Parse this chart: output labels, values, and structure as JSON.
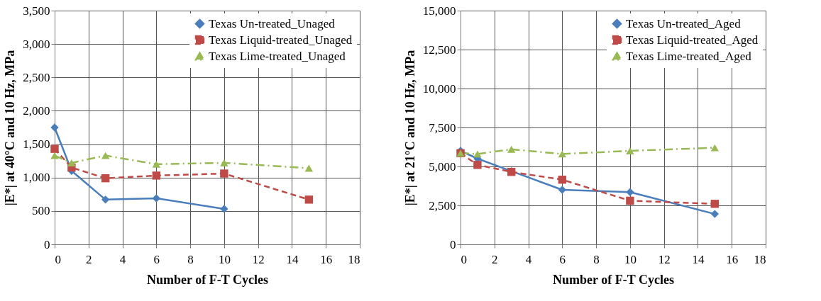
{
  "chart_data": [
    {
      "type": "line",
      "xlabel": "Number of F-T Cycles",
      "ylabel": "|E*| at 40°C and 10 Hz, MPa",
      "x": [
        0,
        1,
        3,
        6,
        10,
        15
      ],
      "xlim": [
        0,
        18
      ],
      "xticks": [
        0,
        2,
        4,
        6,
        8,
        10,
        12,
        14,
        16,
        18
      ],
      "ylim": [
        0,
        3500
      ],
      "yticks": [
        0,
        500,
        {
          "value": 1000,
          "label": "1,000"
        },
        {
          "value": 1500,
          "label": "1,500"
        },
        {
          "value": 2000,
          "label": "2,000"
        },
        {
          "value": 2500,
          "label": "2,500"
        },
        {
          "value": 3000,
          "label": "3,000"
        },
        {
          "value": 3500,
          "label": "3,500"
        }
      ],
      "grid": true,
      "legend": "top right",
      "series": [
        {
          "name": "Texas Un-treated_Unaged",
          "color": "#4a7ebb",
          "marker": "diamond",
          "line_style": "solid",
          "values": [
            1750,
            1100,
            670,
            690,
            530,
            null
          ]
        },
        {
          "name": "Texas Liquid-treated_Unaged",
          "color": "#be4b48",
          "marker": "square",
          "line_style": "dashed",
          "values": [
            1430,
            1150,
            990,
            1030,
            1060,
            670
          ]
        },
        {
          "name": "Texas Lime-treated_Unaged",
          "color": "#98b954",
          "marker": "triangle",
          "line_style": "dashdot",
          "values": [
            1330,
            1220,
            1330,
            1200,
            1220,
            1140
          ]
        }
      ]
    },
    {
      "type": "line",
      "xlabel": "Number of F-T Cycles",
      "ylabel": "|E*| at 21°C and 10 Hz, MPa",
      "x": [
        0,
        1,
        3,
        6,
        10,
        15
      ],
      "xlim": [
        0,
        18
      ],
      "xticks": [
        0,
        2,
        4,
        6,
        8,
        10,
        12,
        14,
        16,
        18
      ],
      "ylim": [
        0,
        15000
      ],
      "yticks": [
        0,
        {
          "value": 2500,
          "label": "2,500"
        },
        {
          "value": 5000,
          "label": "5,000"
        },
        {
          "value": 7500,
          "label": "7,500"
        },
        {
          "value": 10000,
          "label": "10,000"
        },
        {
          "value": 12500,
          "label": "12,500"
        },
        {
          "value": 15000,
          "label": "15,000"
        }
      ],
      "grid": true,
      "legend": "top right",
      "series": [
        {
          "name": "Texas Un-treated_Aged",
          "color": "#4a7ebb",
          "marker": "diamond",
          "line_style": "solid",
          "values": [
            6000,
            5500,
            4700,
            3500,
            3350,
            1950
          ]
        },
        {
          "name": "Texas Liquid-treated_Aged",
          "color": "#be4b48",
          "marker": "square",
          "line_style": "dashed",
          "values": [
            5850,
            5100,
            4650,
            4150,
            2800,
            2600
          ]
        },
        {
          "name": "Texas Lime-treated_Aged",
          "color": "#98b954",
          "marker": "triangle",
          "line_style": "dashdot",
          "values": [
            5850,
            5800,
            6100,
            5800,
            6000,
            6200
          ]
        }
      ]
    }
  ]
}
